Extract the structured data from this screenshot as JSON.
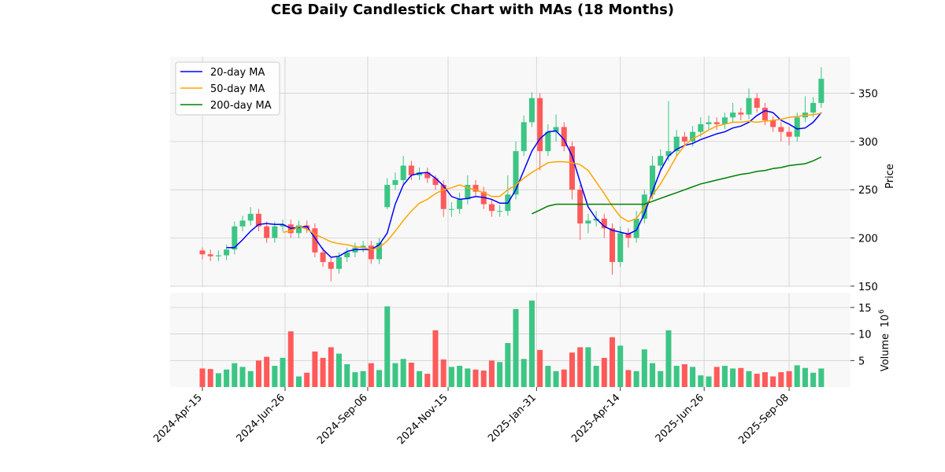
{
  "chart_data": {
    "type": "candlestick",
    "title": "CEG Daily Candlestick Chart with MAs (18 Months)",
    "price_label": "Price",
    "volume_label": "Volume",
    "volume_exponent": "10",
    "volume_exponent_power": "6",
    "start_date": "2024-04-15",
    "interval_days": 7,
    "price_ylim": [
      149,
      388
    ],
    "price_ticks": [
      "150",
      "200",
      "250",
      "300",
      "350"
    ],
    "volume_ylim": [
      0,
      17.8
    ],
    "volume_ticks": [
      "5",
      "10",
      "15"
    ],
    "x_ticks": [
      {
        "label": "2024-Apr-15",
        "day": 0
      },
      {
        "label": "2024-Jun-26",
        "day": 72
      },
      {
        "label": "2024-Sep-06",
        "day": 144
      },
      {
        "label": "2024-Nov-15",
        "day": 214
      },
      {
        "label": "2025-Jan-31",
        "day": 291
      },
      {
        "label": "2025-Apr-14",
        "day": 364
      },
      {
        "label": "2025-Jun-26",
        "day": 437
      },
      {
        "label": "2025-Sep-08",
        "day": 511
      }
    ],
    "grid": true,
    "legend_position": "top-left",
    "legend": [
      {
        "name": "20-day MA",
        "color": "#0000ff"
      },
      {
        "name": "50-day MA",
        "color": "#ffa500"
      },
      {
        "name": "200-day MA",
        "color": "#008000"
      }
    ],
    "up_color": "#3cc584",
    "down_color": "#ff5a5a",
    "ohlc": [
      [
        187,
        190,
        178,
        183
      ],
      [
        183,
        188,
        176,
        181
      ],
      [
        181,
        187,
        176,
        182
      ],
      [
        182,
        193,
        177,
        188
      ],
      [
        188,
        217,
        183,
        212
      ],
      [
        212,
        223,
        207,
        218
      ],
      [
        218,
        232,
        213,
        225
      ],
      [
        225,
        230,
        207,
        212
      ],
      [
        212,
        217,
        195,
        200
      ],
      [
        200,
        217,
        195,
        212
      ],
      [
        212,
        219,
        207,
        214
      ],
      [
        214,
        219,
        200,
        205
      ],
      [
        205,
        218,
        200,
        213
      ],
      [
        213,
        218,
        205,
        210
      ],
      [
        210,
        215,
        180,
        185
      ],
      [
        185,
        190,
        170,
        175
      ],
      [
        175,
        180,
        155,
        168
      ],
      [
        168,
        185,
        163,
        180
      ],
      [
        180,
        190,
        175,
        185
      ],
      [
        185,
        195,
        180,
        190
      ],
      [
        190,
        197,
        185,
        192
      ],
      [
        192,
        197,
        173,
        178
      ],
      [
        178,
        200,
        173,
        195
      ],
      [
        232,
        262,
        230,
        255
      ],
      [
        255,
        268,
        250,
        260
      ],
      [
        260,
        285,
        255,
        275
      ],
      [
        275,
        280,
        260,
        265
      ],
      [
        265,
        273,
        260,
        268
      ],
      [
        268,
        273,
        257,
        262
      ],
      [
        262,
        265,
        250,
        255
      ],
      [
        255,
        260,
        222,
        230
      ],
      [
        230,
        237,
        222,
        230
      ],
      [
        230,
        247,
        225,
        240
      ],
      [
        240,
        265,
        235,
        255
      ],
      [
        255,
        260,
        243,
        248
      ],
      [
        248,
        253,
        230,
        235
      ],
      [
        235,
        240,
        222,
        228
      ],
      [
        228,
        234,
        222,
        228
      ],
      [
        228,
        265,
        223,
        245
      ],
      [
        245,
        300,
        240,
        290
      ],
      [
        290,
        327,
        285,
        320
      ],
      [
        320,
        351,
        315,
        345
      ],
      [
        345,
        350,
        270,
        290
      ],
      [
        290,
        318,
        285,
        310
      ],
      [
        310,
        328,
        300,
        315
      ],
      [
        315,
        320,
        290,
        295
      ],
      [
        295,
        300,
        240,
        250
      ],
      [
        250,
        255,
        198,
        215
      ],
      [
        215,
        225,
        205,
        218
      ],
      [
        218,
        228,
        212,
        220
      ],
      [
        220,
        225,
        200,
        210
      ],
      [
        210,
        215,
        162,
        175
      ],
      [
        175,
        212,
        170,
        205
      ],
      [
        205,
        210,
        190,
        200
      ],
      [
        200,
        228,
        195,
        220
      ],
      [
        220,
        250,
        215,
        245
      ],
      [
        245,
        285,
        240,
        275
      ],
      [
        275,
        292,
        270,
        285
      ],
      [
        285,
        342,
        280,
        290
      ],
      [
        290,
        312,
        285,
        305
      ],
      [
        305,
        310,
        295,
        300
      ],
      [
        300,
        316,
        295,
        310
      ],
      [
        310,
        325,
        305,
        318
      ],
      [
        318,
        327,
        313,
        320
      ],
      [
        320,
        325,
        312,
        318
      ],
      [
        318,
        330,
        313,
        325
      ],
      [
        325,
        340,
        320,
        330
      ],
      [
        330,
        335,
        322,
        328
      ],
      [
        328,
        355,
        323,
        345
      ],
      [
        345,
        350,
        330,
        335
      ],
      [
        335,
        340,
        317,
        322
      ],
      [
        322,
        326,
        310,
        315
      ],
      [
        315,
        320,
        300,
        310
      ],
      [
        310,
        315,
        296,
        305
      ],
      [
        305,
        330,
        300,
        325
      ],
      [
        325,
        347,
        320,
        330
      ],
      [
        330,
        346,
        325,
        340
      ],
      [
        340,
        377,
        335,
        365
      ]
    ],
    "volume_millions": [
      3.5,
      3.4,
      2.6,
      3.3,
      4.5,
      3.8,
      3.0,
      5.0,
      5.7,
      4.0,
      5.5,
      10.5,
      2.0,
      2.7,
      6.7,
      5.5,
      7.5,
      6.3,
      4.3,
      2.8,
      3.0,
      4.5,
      3.2,
      15.2,
      4.5,
      5.3,
      4.6,
      3.0,
      2.5,
      10.7,
      5.2,
      3.8,
      4.0,
      3.5,
      3.3,
      3.1,
      5.0,
      4.7,
      8.3,
      14.7,
      5.3,
      16.3,
      7.0,
      4.0,
      3.0,
      3.3,
      6.5,
      7.5,
      7.5,
      4.0,
      5.5,
      9.4,
      7.8,
      3.2,
      3.0,
      7.1,
      4.5,
      3.0,
      10.7,
      4.0,
      4.3,
      3.8,
      2.2,
      2.0,
      3.8,
      4.0,
      3.5,
      3.6,
      3.0,
      2.5,
      2.8,
      2.0,
      2.8,
      3.0,
      4.1,
      3.6,
      2.7,
      3.5
    ],
    "ma20": [
      null,
      null,
      null,
      190,
      190,
      198,
      207,
      214,
      215,
      214,
      214,
      210,
      211,
      212,
      200,
      188,
      180,
      181,
      186,
      188,
      188,
      188,
      193,
      205,
      235,
      255,
      265,
      267,
      268,
      262,
      254,
      243,
      240,
      241,
      243,
      242,
      240,
      236,
      236,
      250,
      270,
      290,
      303,
      310,
      311,
      302,
      285,
      258,
      232,
      220,
      212,
      208,
      206,
      204,
      208,
      225,
      248,
      270,
      285,
      292,
      296,
      298,
      302,
      305,
      308,
      310,
      314,
      316,
      320,
      327,
      332,
      330,
      322,
      318,
      313,
      314,
      320,
      330
    ],
    "ma50": [
      null,
      null,
      null,
      null,
      null,
      null,
      null,
      null,
      null,
      null,
      206,
      207,
      212,
      209,
      204,
      200,
      196,
      194,
      193,
      191,
      190,
      188,
      190,
      197,
      207,
      218,
      228,
      236,
      240,
      246,
      250,
      252,
      255,
      252,
      250,
      247,
      243,
      243,
      250,
      255,
      262,
      268,
      273,
      278,
      279,
      279,
      278,
      276,
      270,
      258,
      246,
      233,
      222,
      217,
      220,
      232,
      244,
      256,
      270,
      285,
      296,
      303,
      307,
      312,
      316,
      318,
      320,
      320,
      321,
      320,
      321,
      322,
      323,
      325,
      326,
      327,
      328,
      329
    ],
    "ma200": [
      null,
      null,
      null,
      null,
      null,
      null,
      null,
      null,
      null,
      null,
      null,
      null,
      null,
      null,
      null,
      null,
      null,
      null,
      null,
      null,
      null,
      null,
      null,
      null,
      null,
      null,
      null,
      null,
      null,
      null,
      null,
      null,
      null,
      null,
      null,
      null,
      null,
      null,
      null,
      null,
      null,
      225,
      229,
      233,
      235,
      235,
      235,
      235,
      235,
      235,
      235,
      235,
      235,
      235,
      235,
      235,
      238,
      241,
      244,
      247,
      250,
      253,
      256,
      258,
      260,
      262,
      264,
      266,
      267,
      269,
      270,
      272,
      273,
      275,
      276,
      277,
      280,
      284
    ]
  }
}
